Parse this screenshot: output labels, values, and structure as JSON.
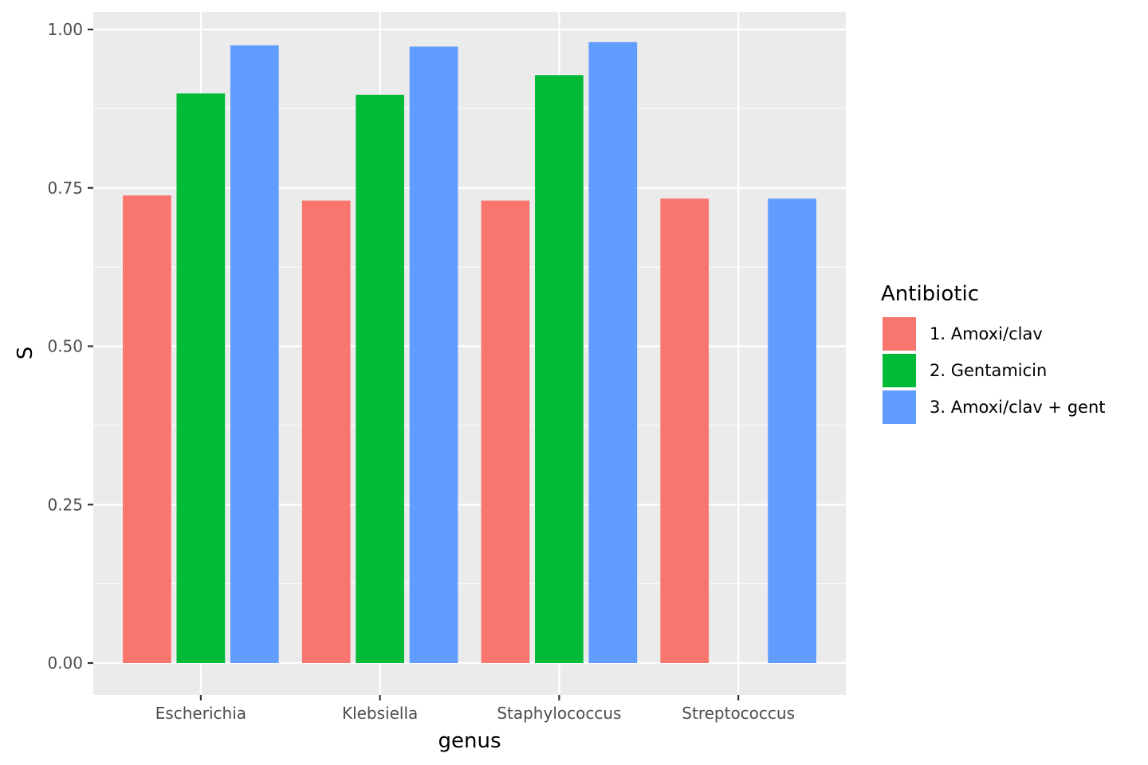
{
  "chart_data": {
    "type": "bar",
    "xlabel": "genus",
    "ylabel": "S",
    "ylim": [
      0,
      1.0278
    ],
    "y_ticks": [
      "0.00",
      "0.25",
      "0.50",
      "0.75",
      "1.00"
    ],
    "y_tick_values": [
      0,
      0.25,
      0.5,
      0.75,
      1.0
    ],
    "categories": [
      "Escherichia",
      "Klebsiella",
      "Staphylococcus",
      "Streptococcus"
    ],
    "grid": true,
    "legend": {
      "title": "Antibiotic",
      "position": "right"
    },
    "series": [
      {
        "name": "1. Amoxi/clav",
        "color": "#F8766D",
        "values": [
          0.738,
          0.73,
          0.73,
          0.733
        ]
      },
      {
        "name": "2. Gentamicin",
        "color": "#00BA38",
        "values": [
          0.899,
          0.897,
          0.928,
          null
        ]
      },
      {
        "name": "3. Amoxi/clav + gent",
        "color": "#619CFF",
        "values": [
          0.975,
          0.973,
          0.98,
          0.733
        ]
      }
    ]
  }
}
